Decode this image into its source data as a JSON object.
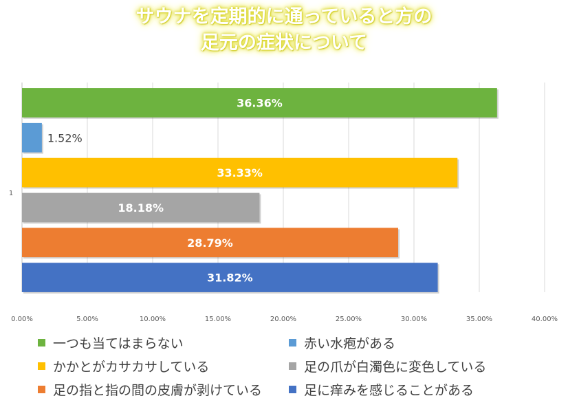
{
  "chart_data": {
    "type": "bar",
    "orientation": "horizontal",
    "title_lines": [
      "サウナを定期的に通っていると方の",
      "足元の症状について"
    ],
    "categories": [
      "1"
    ],
    "xlim": [
      0,
      40
    ],
    "x_ticks": [
      "0.00%",
      "5.00%",
      "10.00%",
      "15.00%",
      "20.00%",
      "25.00%",
      "30.00%",
      "35.00%",
      "40.00%"
    ],
    "grid": true,
    "legend_position": "bottom",
    "series": [
      {
        "name": "一つも当てはまらない",
        "value": 36.36,
        "label": "36.36%",
        "color": "#6db33f"
      },
      {
        "name": "赤い水疱がある",
        "value": 1.52,
        "label": "1.52%",
        "color": "#5b9bd5"
      },
      {
        "name": "かかとがカサカサしている",
        "value": 33.33,
        "label": "33.33%",
        "color": "#ffc000"
      },
      {
        "name": "足の爪が白濁色に変色している",
        "value": 18.18,
        "label": "18.18%",
        "color": "#a5a5a5"
      },
      {
        "name": "足の指と指の間の皮膚が剥けている",
        "value": 28.79,
        "label": "28.79%",
        "color": "#ed7d31"
      },
      {
        "name": "足に痒みを感じることがある",
        "value": 31.82,
        "label": "31.82%",
        "color": "#4472c4"
      }
    ]
  }
}
